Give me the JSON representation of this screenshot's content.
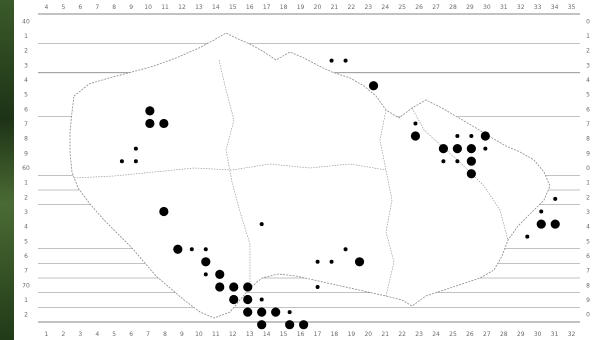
{
  "page": {
    "background": "#ffffff",
    "frame_color": "#2f4a22"
  },
  "map": {
    "type": "distribution-grid",
    "region": "Czech Republic",
    "marker_color": "#000000",
    "line_color": "#7a7a7a",
    "grid_columns": 32,
    "grid_rows": 21,
    "top_axis": [
      "4",
      "5",
      "6",
      "7",
      "8",
      "9",
      "10",
      "11",
      "12",
      "13",
      "14",
      "15",
      "16",
      "17",
      "18",
      "19",
      "20",
      "21",
      "22",
      "23",
      "24",
      "25",
      "26",
      "27",
      "28",
      "29",
      "30",
      "31",
      "32",
      "33",
      "34",
      "35"
    ],
    "bottom_axis": [
      "1",
      "2",
      "3",
      "4",
      "5",
      "6",
      "7",
      "8",
      "9",
      "10",
      "11",
      "12",
      "13",
      "14",
      "15",
      "16",
      "17",
      "18",
      "19",
      "20",
      "21",
      "22",
      "23",
      "24",
      "25",
      "26",
      "27",
      "28",
      "29",
      "30",
      "31",
      "32"
    ],
    "left_axis": [
      "40",
      "1",
      "2",
      "3",
      "4",
      "5",
      "6",
      "7",
      "8",
      "9",
      "60",
      "1",
      "2",
      "3",
      "4",
      "5",
      "6",
      "7",
      "70",
      "1",
      "2"
    ],
    "right_axis": [
      "0",
      "1",
      "2",
      "3",
      "4",
      "5",
      "6",
      "7",
      "8",
      "9",
      "0",
      "1",
      "2",
      "3",
      "4",
      "5",
      "6",
      "7",
      "8",
      "9",
      "0"
    ],
    "occurrences": [
      {
        "col": 19,
        "row": 1,
        "size": "small"
      },
      {
        "col": 20,
        "row": 1,
        "size": "small"
      },
      {
        "col": 22,
        "row": 3,
        "size": "large"
      },
      {
        "col": 6,
        "row": 5,
        "size": "large"
      },
      {
        "col": 6,
        "row": 6,
        "size": "large"
      },
      {
        "col": 7,
        "row": 6,
        "size": "large"
      },
      {
        "col": 5,
        "row": 8,
        "size": "small"
      },
      {
        "col": 4,
        "row": 9,
        "size": "small"
      },
      {
        "col": 5,
        "row": 9,
        "size": "small"
      },
      {
        "col": 25,
        "row": 6,
        "size": "small"
      },
      {
        "col": 25,
        "row": 7,
        "size": "large"
      },
      {
        "col": 28,
        "row": 7,
        "size": "small"
      },
      {
        "col": 29,
        "row": 7,
        "size": "small"
      },
      {
        "col": 30,
        "row": 7,
        "size": "large"
      },
      {
        "col": 27,
        "row": 8,
        "size": "large"
      },
      {
        "col": 28,
        "row": 8,
        "size": "large"
      },
      {
        "col": 29,
        "row": 8,
        "size": "large"
      },
      {
        "col": 30,
        "row": 8,
        "size": "small"
      },
      {
        "col": 27,
        "row": 9,
        "size": "small"
      },
      {
        "col": 28,
        "row": 9,
        "size": "small"
      },
      {
        "col": 29,
        "row": 9,
        "size": "large"
      },
      {
        "col": 29,
        "row": 10,
        "size": "large"
      },
      {
        "col": 7,
        "row": 13,
        "size": "large"
      },
      {
        "col": 8,
        "row": 16,
        "size": "large"
      },
      {
        "col": 9,
        "row": 16,
        "size": "small"
      },
      {
        "col": 10,
        "row": 16,
        "size": "small"
      },
      {
        "col": 10,
        "row": 17,
        "size": "large"
      },
      {
        "col": 10,
        "row": 18,
        "size": "small"
      },
      {
        "col": 11,
        "row": 18,
        "size": "large"
      },
      {
        "col": 11,
        "row": 19,
        "size": "large"
      },
      {
        "col": 12,
        "row": 19,
        "size": "large"
      },
      {
        "col": 13,
        "row": 19,
        "size": "large"
      },
      {
        "col": 12,
        "row": 20,
        "size": "large"
      },
      {
        "col": 13,
        "row": 20,
        "size": "large"
      },
      {
        "col": 14,
        "row": 20,
        "size": "small"
      },
      {
        "col": 13,
        "row": 21,
        "size": "large"
      },
      {
        "col": 14,
        "row": 21,
        "size": "large"
      },
      {
        "col": 15,
        "row": 21,
        "size": "large"
      },
      {
        "col": 14,
        "row": 22,
        "size": "large"
      },
      {
        "col": 16,
        "row": 22,
        "size": "large"
      },
      {
        "col": 17,
        "row": 22,
        "size": "large"
      },
      {
        "col": 16,
        "row": 21,
        "size": "small"
      },
      {
        "col": 18,
        "row": 17,
        "size": "small"
      },
      {
        "col": 19,
        "row": 17,
        "size": "small"
      },
      {
        "col": 20,
        "row": 16,
        "size": "small"
      },
      {
        "col": 21,
        "row": 17,
        "size": "large"
      },
      {
        "col": 18,
        "row": 19,
        "size": "small"
      },
      {
        "col": 14,
        "row": 14,
        "size": "small"
      },
      {
        "col": 35,
        "row": 12,
        "size": "small"
      },
      {
        "col": 34,
        "row": 13,
        "size": "small"
      },
      {
        "col": 34,
        "row": 14,
        "size": "large"
      },
      {
        "col": 35,
        "row": 14,
        "size": "large"
      },
      {
        "col": 33,
        "row": 15,
        "size": "small"
      }
    ]
  }
}
